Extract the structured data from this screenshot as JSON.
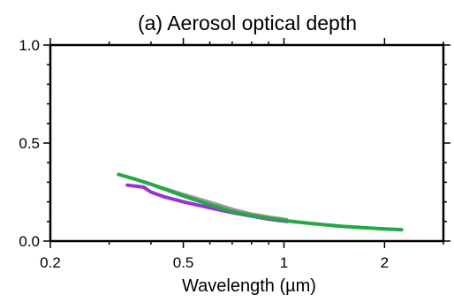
{
  "chart_data": {
    "type": "line",
    "title": "(a) Aerosol optical depth",
    "xlabel": "Wavelength (µm)",
    "ylabel": "",
    "x_scale": "log",
    "xlim": [
      0.2,
      3.0
    ],
    "ylim": [
      0.0,
      1.0
    ],
    "x_ticks": [
      {
        "value": 0.2,
        "label": "0.2"
      },
      {
        "value": 0.5,
        "label": "0.5"
      },
      {
        "value": 1,
        "label": "1"
      },
      {
        "value": 2,
        "label": "2"
      }
    ],
    "y_ticks": [
      {
        "value": 0.0,
        "label": "0.0"
      },
      {
        "value": 0.5,
        "label": "0.5"
      },
      {
        "value": 1.0,
        "label": "1.0"
      }
    ],
    "x_minor_ticks": [
      0.3,
      0.4,
      0.6,
      0.7,
      0.8,
      0.9,
      3.0
    ],
    "y_minor_ticks": [
      0.1,
      0.2,
      0.3,
      0.4,
      0.6,
      0.7,
      0.8,
      0.9
    ],
    "grid": false,
    "legend": "none",
    "series": [
      {
        "color": "#9b30d9",
        "x": [
          0.34,
          0.38,
          0.4,
          0.44,
          0.5,
          0.6,
          0.7,
          0.8,
          0.9,
          1.02
        ],
        "y": [
          0.285,
          0.275,
          0.25,
          0.225,
          0.2,
          0.17,
          0.145,
          0.128,
          0.112,
          0.1
        ]
      },
      {
        "color": "#9a9a9a",
        "x": [
          0.38,
          0.42,
          0.5,
          0.6,
          0.7,
          0.8,
          0.9,
          1.02
        ],
        "y": [
          0.305,
          0.28,
          0.24,
          0.2,
          0.165,
          0.14,
          0.125,
          0.112
        ]
      },
      {
        "color": "#22a844",
        "x": [
          0.32,
          0.36,
          0.4,
          0.5,
          0.6,
          0.7,
          0.8,
          1.0,
          1.2,
          1.5,
          2.0,
          2.25
        ],
        "y": [
          0.34,
          0.315,
          0.29,
          0.23,
          0.185,
          0.15,
          0.13,
          0.105,
          0.09,
          0.075,
          0.062,
          0.058
        ]
      }
    ]
  }
}
